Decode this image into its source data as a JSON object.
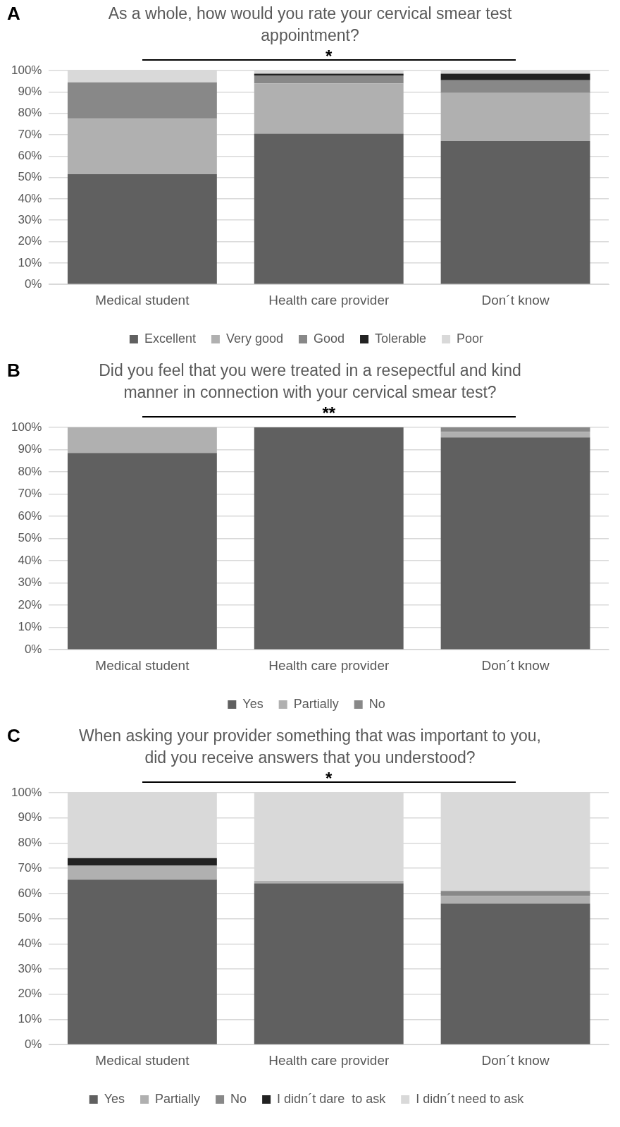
{
  "chart_data": [
    {
      "type": "bar",
      "title": "As a whole, how would you rate your cervical smear test appointment?",
      "categories": [
        "Medical student",
        "Health care provider",
        "Don´t know"
      ],
      "stacked": true,
      "legend": "bottom",
      "grid": "y",
      "ylim": [
        0,
        100
      ],
      "yticks": [
        {
          "value": 0,
          "label": "0%"
        },
        {
          "value": 10,
          "label": "10%"
        },
        {
          "value": 20,
          "label": "20%"
        },
        {
          "value": 30,
          "label": "30%"
        },
        {
          "value": 40,
          "label": "40%"
        },
        {
          "value": 50,
          "label": "50%"
        },
        {
          "value": 60,
          "label": "60%"
        },
        {
          "value": 70,
          "label": "70%"
        },
        {
          "value": 80,
          "label": "80%"
        },
        {
          "value": 90,
          "label": "90%"
        },
        {
          "value": 100,
          "label": "100%"
        }
      ],
      "annotations": [
        "A",
        "*"
      ],
      "series": [
        {
          "name": "Excellent",
          "color": "#606060",
          "values": [
            51.5,
            70.5,
            67
          ]
        },
        {
          "name": "Very good",
          "color": "#b0b0b0",
          "values": [
            26,
            23.5,
            22.5
          ]
        },
        {
          "name": "Good",
          "color": "#888888",
          "values": [
            17,
            3.5,
            6
          ]
        },
        {
          "name": "Tolerable",
          "color": "#222222",
          "values": [
            0,
            1,
            3
          ]
        },
        {
          "name": "Poor",
          "color": "#d9d9d9",
          "values": [
            5.5,
            1.5,
            1.5
          ]
        }
      ]
    },
    {
      "type": "bar",
      "title": "Did you feel that you were treated in a resepectful and kind manner in connection with your cervical smear test?",
      "categories": [
        "Medical student",
        "Health care provider",
        "Don´t know"
      ],
      "stacked": true,
      "legend": "bottom",
      "grid": "y",
      "ylim": [
        0,
        100
      ],
      "yticks": [
        {
          "value": 0,
          "label": "0%"
        },
        {
          "value": 10,
          "label": "10%"
        },
        {
          "value": 20,
          "label": "20%"
        },
        {
          "value": 30,
          "label": "30%"
        },
        {
          "value": 40,
          "label": "40%"
        },
        {
          "value": 50,
          "label": "50%"
        },
        {
          "value": 60,
          "label": "60%"
        },
        {
          "value": 70,
          "label": "70%"
        },
        {
          "value": 80,
          "label": "80%"
        },
        {
          "value": 90,
          "label": "90%"
        },
        {
          "value": 100,
          "label": "100%"
        }
      ],
      "annotations": [
        "B",
        "**"
      ],
      "series": [
        {
          "name": "Yes",
          "color": "#606060",
          "values": [
            88.5,
            100,
            95.5
          ]
        },
        {
          "name": "Partially",
          "color": "#b0b0b0",
          "values": [
            11.5,
            0,
            2.5
          ]
        },
        {
          "name": "No",
          "color": "#888888",
          "values": [
            0,
            0,
            2
          ]
        }
      ]
    },
    {
      "type": "bar",
      "title": "When asking your provider something that was important to you, did you receive answers that you understood?",
      "categories": [
        "Medical student",
        "Health care provider",
        "Don´t know"
      ],
      "stacked": true,
      "legend": "bottom",
      "grid": "y",
      "ylim": [
        0,
        100
      ],
      "yticks": [
        {
          "value": 0,
          "label": "0%"
        },
        {
          "value": 10,
          "label": "10%"
        },
        {
          "value": 20,
          "label": "20%"
        },
        {
          "value": 30,
          "label": "30%"
        },
        {
          "value": 40,
          "label": "40%"
        },
        {
          "value": 50,
          "label": "50%"
        },
        {
          "value": 60,
          "label": "60%"
        },
        {
          "value": 70,
          "label": "70%"
        },
        {
          "value": 80,
          "label": "80%"
        },
        {
          "value": 90,
          "label": "90%"
        },
        {
          "value": 100,
          "label": "100%"
        }
      ],
      "annotations": [
        "C",
        "*"
      ],
      "series": [
        {
          "name": "Yes",
          "color": "#606060",
          "values": [
            65.5,
            64,
            56
          ]
        },
        {
          "name": "Partially",
          "color": "#b0b0b0",
          "values": [
            5.5,
            1,
            3
          ]
        },
        {
          "name": "No",
          "color": "#888888",
          "values": [
            0,
            0,
            2
          ]
        },
        {
          "name": "I didn´t dare  to ask",
          "color": "#222222",
          "values": [
            3,
            0,
            0
          ]
        },
        {
          "name": "I didn´t need to ask",
          "color": "#d9d9d9",
          "values": [
            26,
            35,
            39
          ]
        }
      ]
    }
  ]
}
